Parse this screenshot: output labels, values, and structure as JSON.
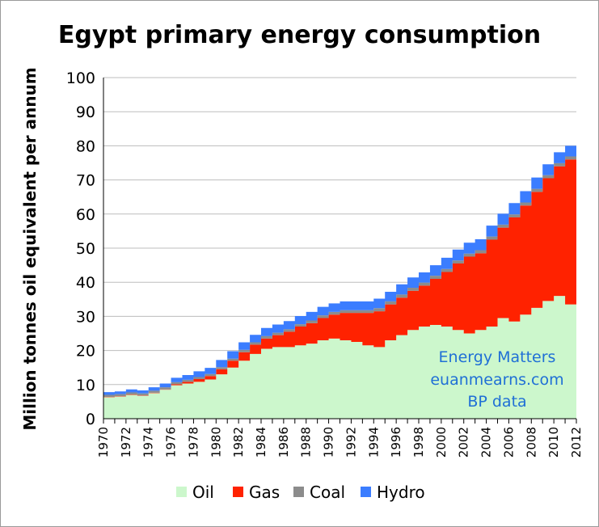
{
  "chart_data": {
    "type": "area",
    "stacked": true,
    "title": "Egypt primary energy consumption",
    "ylabel": "Million tonnes oil equivalent per annum",
    "ylim": [
      0,
      100
    ],
    "y_ticks": [
      0,
      10,
      20,
      30,
      40,
      50,
      60,
      70,
      80,
      90,
      100
    ],
    "x_tick_labels": [
      "1970",
      "1972",
      "1974",
      "1976",
      "1978",
      "1980",
      "1982",
      "1984",
      "1986",
      "1988",
      "1990",
      "1992",
      "1994",
      "1996",
      "1998",
      "2000",
      "2002",
      "2004",
      "2006",
      "2008",
      "2010",
      "2012"
    ],
    "x": [
      1970,
      1971,
      1972,
      1973,
      1974,
      1975,
      1976,
      1977,
      1978,
      1979,
      1980,
      1981,
      1982,
      1983,
      1984,
      1985,
      1986,
      1987,
      1988,
      1989,
      1990,
      1991,
      1992,
      1993,
      1994,
      1995,
      1996,
      1997,
      1998,
      1999,
      2000,
      2001,
      2002,
      2003,
      2004,
      2005,
      2006,
      2007,
      2008,
      2009,
      2010,
      2011,
      2012
    ],
    "series": [
      {
        "name": "Oil",
        "color": "#ccf7cc",
        "values": [
          6.3,
          6.5,
          7.0,
          6.7,
          7.5,
          8.5,
          9.8,
          10.3,
          10.8,
          11.5,
          13.0,
          15.0,
          17.0,
          19.0,
          20.5,
          21.0,
          21.0,
          21.5,
          22.0,
          23.0,
          23.5,
          23.0,
          22.5,
          21.5,
          21.0,
          23.0,
          24.5,
          26.0,
          27.0,
          27.5,
          27.0,
          26.0,
          25.0,
          26.0,
          27.0,
          29.5,
          28.5,
          30.5,
          32.5,
          34.5,
          36.0,
          33.5,
          35.0
        ]
      },
      {
        "name": "Gas",
        "color": "#ff2200",
        "values": [
          0.1,
          0.1,
          0.1,
          0.1,
          0.1,
          0.1,
          0.3,
          0.5,
          0.8,
          1.0,
          1.5,
          2.0,
          2.5,
          2.7,
          3.0,
          3.5,
          4.5,
          5.5,
          6.0,
          6.5,
          7.0,
          8.0,
          8.5,
          9.5,
          10.5,
          10.5,
          11.0,
          11.5,
          12.0,
          13.5,
          16.0,
          19.5,
          22.5,
          22.5,
          25.5,
          26.5,
          30.5,
          32.0,
          34.0,
          36.0,
          38.0,
          42.5,
          46.0
        ]
      },
      {
        "name": "Coal",
        "color": "#8c8c8c",
        "values": [
          0.6,
          0.6,
          0.6,
          0.6,
          0.6,
          0.6,
          0.6,
          0.6,
          0.6,
          0.6,
          0.6,
          0.6,
          0.7,
          0.7,
          0.7,
          0.7,
          0.7,
          0.7,
          0.8,
          0.8,
          0.8,
          0.8,
          0.8,
          0.8,
          0.9,
          0.9,
          0.9,
          0.9,
          0.9,
          0.9,
          0.9,
          0.9,
          0.9,
          0.9,
          0.9,
          0.9,
          0.9,
          0.9,
          0.9,
          0.9,
          0.9,
          0.9,
          0.9
        ]
      },
      {
        "name": "Hydro",
        "color": "#3b7dff",
        "values": [
          0.8,
          0.8,
          0.9,
          0.9,
          1.0,
          1.1,
          1.3,
          1.4,
          1.7,
          1.8,
          2.1,
          2.2,
          2.2,
          2.2,
          2.4,
          2.4,
          2.4,
          2.4,
          2.5,
          2.5,
          2.5,
          2.6,
          2.6,
          2.6,
          2.8,
          2.8,
          3.0,
          3.0,
          3.0,
          3.1,
          3.3,
          3.2,
          3.2,
          3.2,
          3.2,
          3.2,
          3.3,
          3.3,
          3.3,
          3.2,
          3.2,
          3.1,
          3.0
        ]
      }
    ],
    "legend_position": "bottom",
    "annotation_lines": [
      "Energy Matters",
      "euanmearns.com",
      "BP data"
    ],
    "grid": {
      "y": true,
      "x": false
    }
  }
}
